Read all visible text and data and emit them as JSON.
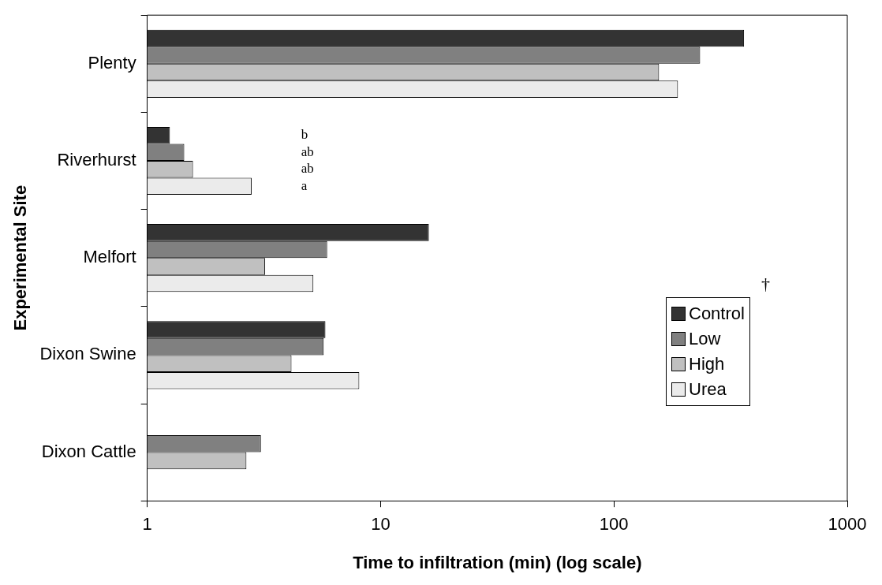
{
  "chart_data": {
    "type": "bar",
    "orientation": "horizontal",
    "log": "x",
    "xlabel": "Time to infiltration (min) (log scale)",
    "ylabel": "Experimental Site",
    "categories": [
      "Plenty",
      "Riverhurst",
      "Melfort",
      "Dixon Swine",
      "Dixon Cattle"
    ],
    "series": [
      {
        "name": "Control",
        "color": "#333333",
        "values": [
          361,
          1.25,
          16.1,
          5.8,
          null
        ]
      },
      {
        "name": "Low",
        "color": "#808080",
        "values": [
          234,
          1.44,
          5.9,
          5.7,
          3.07
        ]
      },
      {
        "name": "High",
        "color": "#c0c0c0",
        "values": [
          156,
          1.57,
          3.2,
          4.15,
          2.66
        ]
      },
      {
        "name": "Urea",
        "color": "#ebebeb",
        "values": [
          188,
          2.8,
          5.15,
          8.1,
          null
        ]
      }
    ],
    "xlim": [
      1,
      1000
    ],
    "xticks": [
      1,
      10,
      100,
      1000
    ],
    "grid": false,
    "legend": "right",
    "annotations": [
      "b",
      "ab",
      "ab",
      "a",
      "†"
    ]
  }
}
